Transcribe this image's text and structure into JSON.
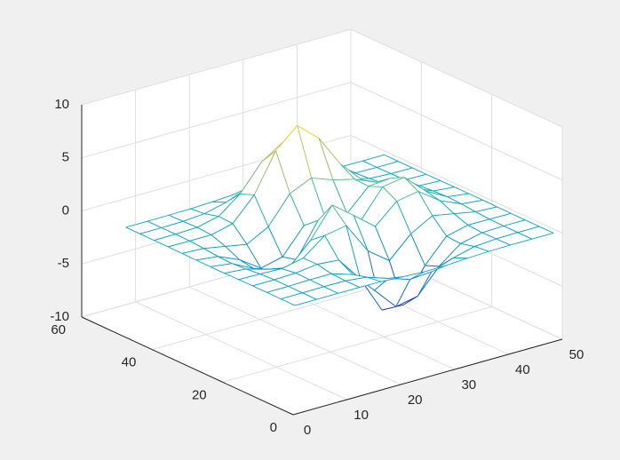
{
  "chart_data": {
    "type": "mesh",
    "x": [
      1,
      5,
      9,
      13,
      17,
      21,
      25,
      29,
      33,
      37,
      41,
      45,
      49
    ],
    "y": [
      1,
      5,
      9,
      13,
      17,
      21,
      25,
      29,
      33,
      37,
      41,
      45,
      49
    ],
    "z": [
      [
        0,
        0,
        0,
        0,
        -0.03,
        -0.14,
        -0.24,
        -0.22,
        -0.11,
        -0.03,
        0,
        0,
        0
      ],
      [
        0,
        0,
        0.02,
        0,
        -0.23,
        -0.91,
        -1.57,
        -1.41,
        -0.69,
        -0.18,
        -0.03,
        0,
        0
      ],
      [
        0,
        0.01,
        0.05,
        0.05,
        -0.59,
        -2.64,
        -4.75,
        -4.34,
        -2.1,
        -0.53,
        -0.06,
        0,
        0
      ],
      [
        0,
        0.01,
        0.08,
        0.33,
        0.15,
        -2.19,
        -5.68,
        -5.76,
        -2.63,
        -0.44,
        0.04,
        0.03,
        0
      ],
      [
        -0.01,
        -0.06,
        -0.13,
        0.3,
        1.86,
        2.22,
        -0.72,
        -2.22,
        -0.27,
        0.88,
        0.5,
        0.11,
        0.01
      ],
      [
        -0.03,
        -0.2,
        -0.8,
        -1.21,
        0.8,
        3.55,
        2.0,
        0.39,
        2.2,
        2.56,
        1.12,
        0.24,
        0.03
      ],
      [
        -0.04,
        -0.3,
        -1.33,
        -2.77,
        -1.65,
        1.48,
        0.98,
        0.37,
        2.94,
        3.27,
        1.41,
        0.3,
        0.03
      ],
      [
        -0.03,
        -0.25,
        -1.12,
        -2.49,
        -2.0,
        0.39,
        0.46,
        0.38,
        2.38,
        2.56,
        1.09,
        0.23,
        0.03
      ],
      [
        -0.01,
        -0.11,
        -0.48,
        -0.86,
        0.23,
        2.79,
        3.69,
        2.94,
        2.43,
        1.58,
        0.58,
        0.11,
        0.01
      ],
      [
        0,
        -0.02,
        -0.01,
        0.48,
        2.61,
        6.2,
        8.0,
        6.25,
        3.25,
        1.19,
        0.29,
        0.05,
        0
      ],
      [
        0,
        0.01,
        0.08,
        0.55,
        2.1,
        4.55,
        5.86,
        4.56,
        2.21,
        0.68,
        0.13,
        0.02,
        0
      ],
      [
        0,
        0,
        0.03,
        0.19,
        0.69,
        1.47,
        1.88,
        1.47,
        0.7,
        0.2,
        0.04,
        0,
        0
      ],
      [
        0,
        0,
        0.01,
        0.03,
        0.11,
        0.23,
        0.3,
        0.23,
        0.11,
        0.03,
        0.01,
        0,
        0
      ]
    ],
    "xlim": [
      0,
      50
    ],
    "ylim": [
      0,
      60
    ],
    "zlim": [
      -10,
      10
    ],
    "xticks": [
      0,
      10,
      20,
      30,
      40,
      50
    ],
    "yticks": [
      0,
      20,
      40,
      60
    ],
    "zticks": [
      -10,
      -5,
      0,
      5,
      10
    ],
    "grid": true,
    "colormap": "parula"
  }
}
